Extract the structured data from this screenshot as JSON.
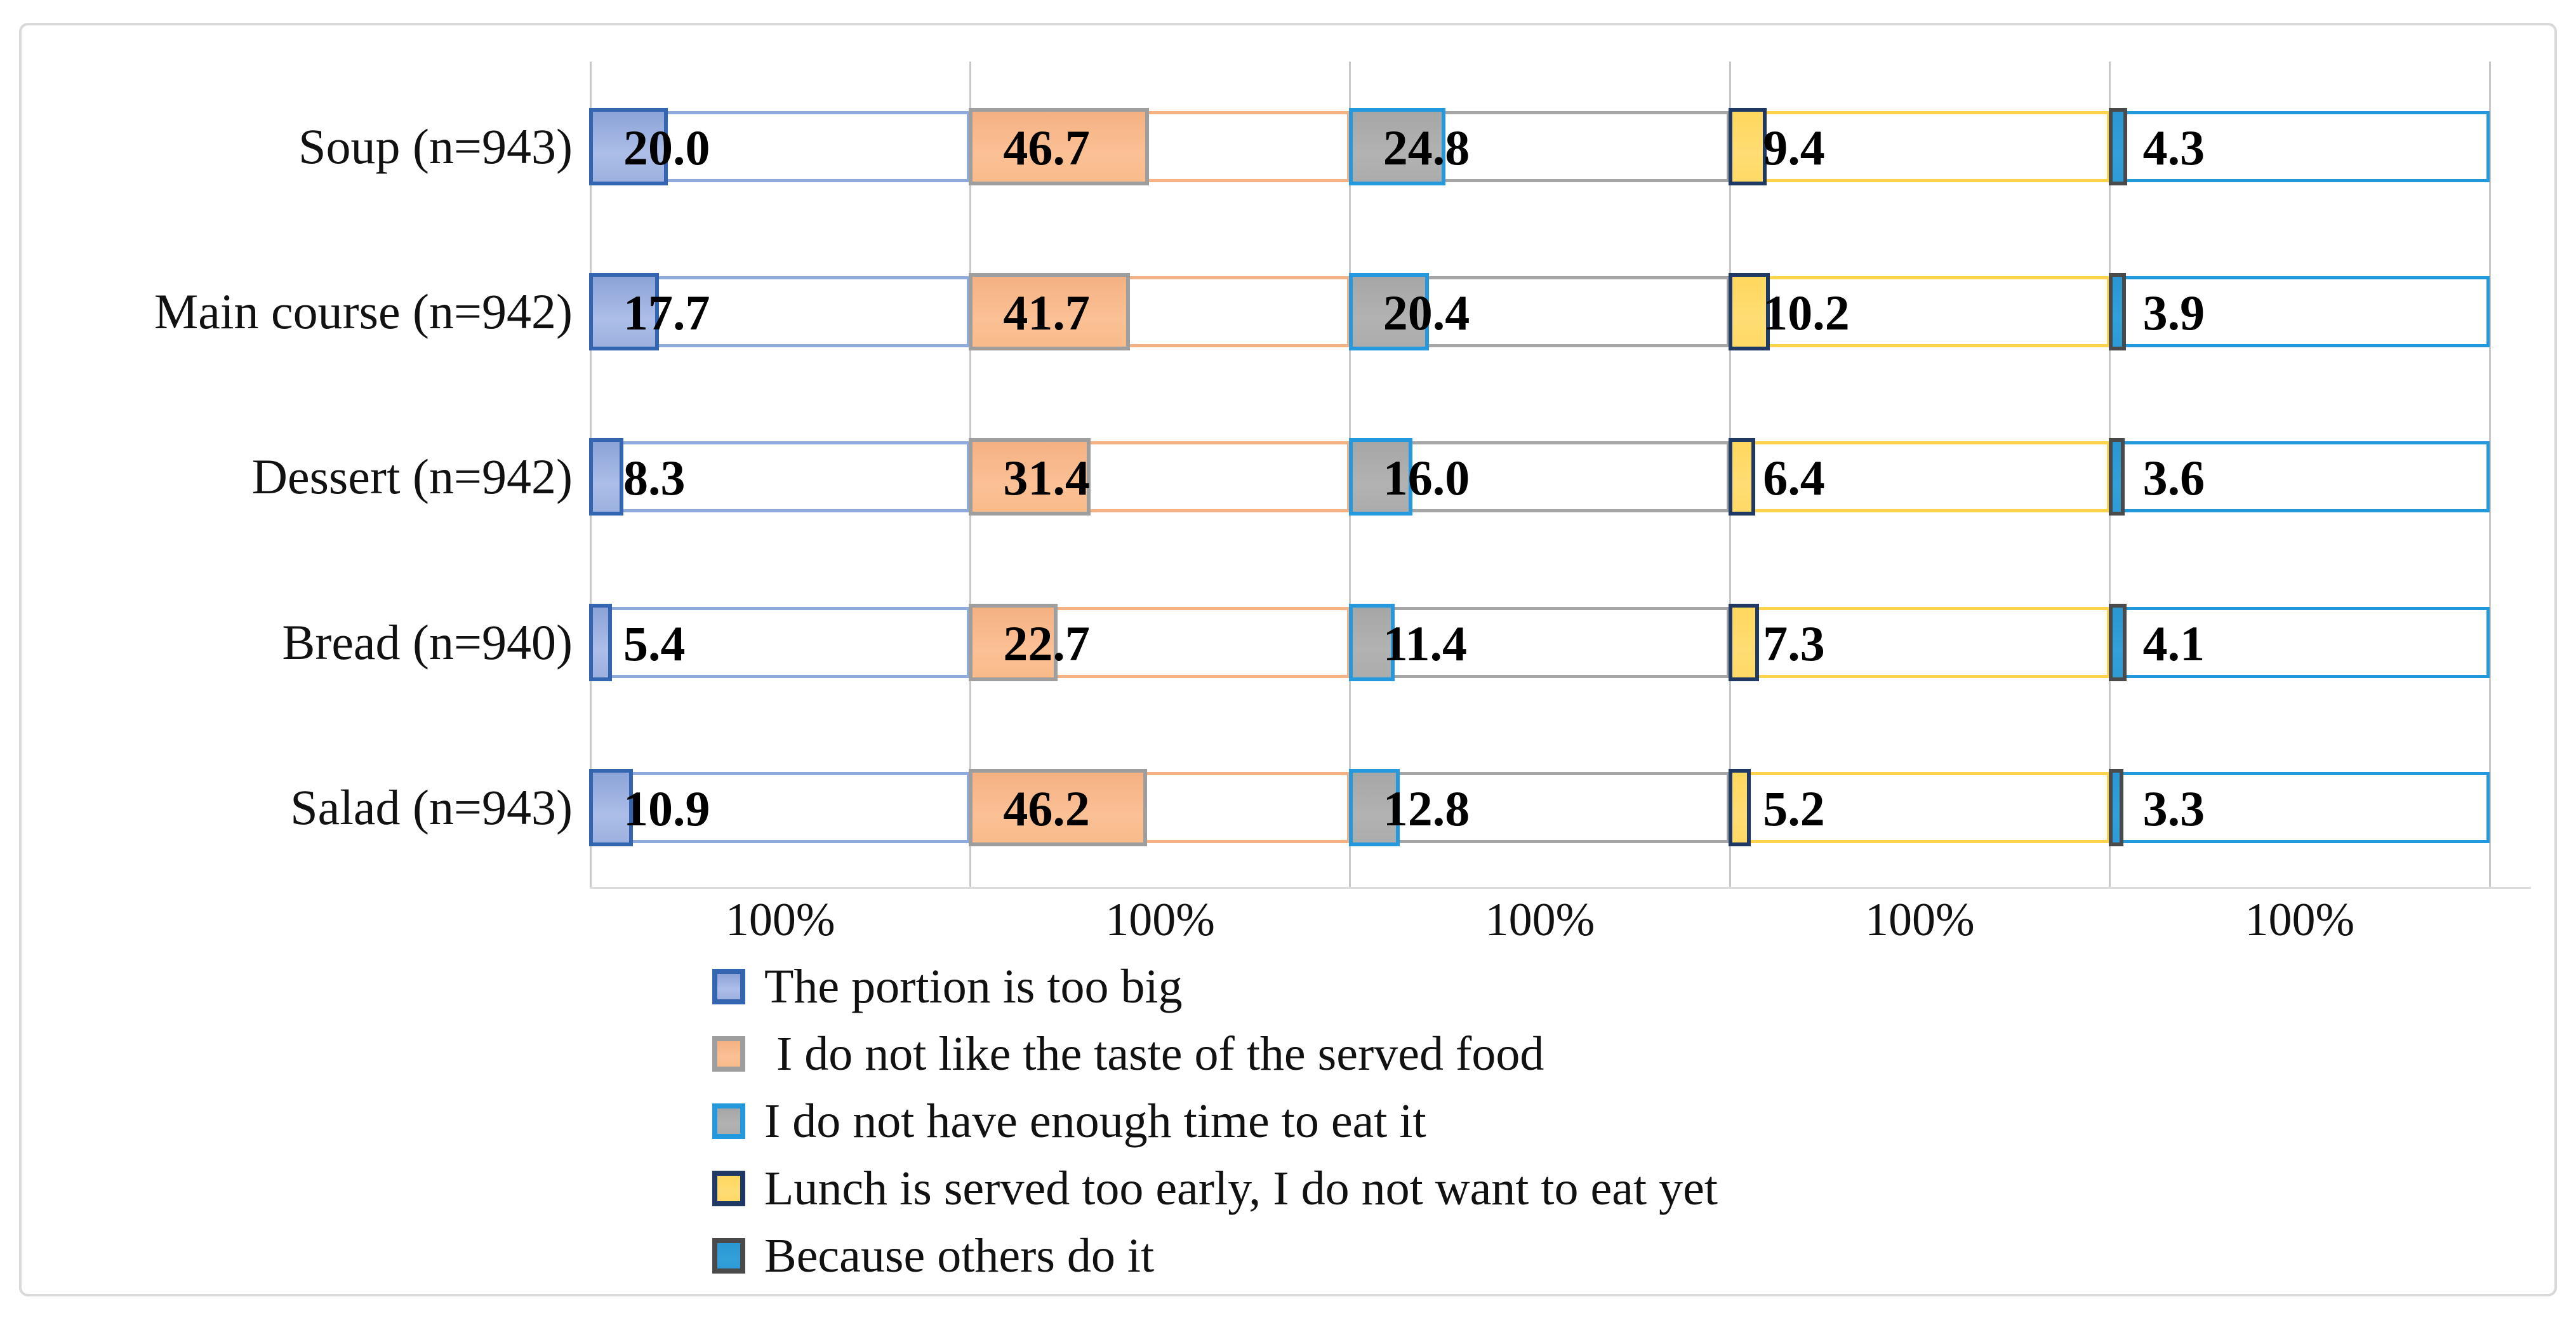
{
  "figure": {
    "background": "#ffffff",
    "frame_border_color": "#d9d9d9",
    "gridline_color": "#c9c9c9"
  },
  "chart_data": {
    "type": "bar",
    "orientation": "horizontal",
    "layout": "5 panels side by side, one per reason; each panel shows a 0-100% outlined track with a filled segment for the percentage",
    "title": "",
    "xlabel": "",
    "ylabel": "",
    "axis": {
      "tick_label": "100%",
      "panel_max": 100,
      "tick_labels": [
        "100%",
        "100%",
        "100%",
        "100%",
        "100%"
      ]
    },
    "grid": true,
    "legend_position": "bottom-left",
    "categories": [
      "Soup (n=943)",
      "Main course (n=942)",
      "Dessert (n=942)",
      "Bread (n=940)",
      "Salad (n=943)"
    ],
    "series": [
      {
        "name": "The portion is too big",
        "fill_color": "#9DB1DF",
        "fill_gradient_top": "#8BA3D7",
        "fill_gradient_bottom": "#ACBEE8",
        "fill_border_color": "#3465B1",
        "track_border_color": "#8FAADC",
        "values": [
          20.0,
          17.7,
          8.3,
          5.4,
          10.9
        ],
        "labels": [
          "20.0",
          "17.7",
          "8.3",
          "5.4",
          "10.9"
        ]
      },
      {
        "name": " I do not like the taste of the served food",
        "fill_color": "#F8BB8B",
        "fill_gradient_top": "#F4B183",
        "fill_gradient_bottom": "#FBC094",
        "fill_border_color": "#9E9E9E",
        "track_border_color": "#F4B183",
        "values": [
          46.7,
          41.7,
          31.4,
          22.7,
          46.2
        ],
        "labels": [
          "46.7",
          "41.7",
          "31.4",
          "22.7",
          "46.2"
        ]
      },
      {
        "name": "I do not have enough time to eat it",
        "fill_color": "#ACACAC",
        "fill_gradient_top": "#A6A6A6",
        "fill_gradient_bottom": "#B2B2B2",
        "fill_border_color": "#2499DE",
        "track_border_color": "#A6A6A6",
        "values": [
          24.8,
          20.4,
          16.0,
          11.4,
          12.8
        ],
        "labels": [
          "24.8",
          "20.4",
          "16.0",
          "11.4",
          "12.8"
        ]
      },
      {
        "name": "Lunch is served too early, I do not want to eat yet",
        "fill_color": "#FFD966",
        "fill_gradient_top": "#FFD75E",
        "fill_gradient_bottom": "#FFDD73",
        "fill_border_color": "#1F3864",
        "track_border_color": "#FFD24C",
        "values": [
          9.4,
          10.2,
          6.4,
          7.3,
          5.2
        ],
        "labels": [
          "9.4",
          "10.2",
          "6.4",
          "7.3",
          "5.2"
        ]
      },
      {
        "name": "Because others do it",
        "fill_color": "#2E9BD6",
        "fill_gradient_top": "#2A97D3",
        "fill_gradient_bottom": "#33A0DA",
        "fill_border_color": "#4A4A4A",
        "track_border_color": "#2199DB",
        "values": [
          4.3,
          3.9,
          3.6,
          4.1,
          3.3
        ],
        "labels": [
          "4.3",
          "3.9",
          "3.6",
          "4.1",
          "3.3"
        ]
      }
    ]
  }
}
